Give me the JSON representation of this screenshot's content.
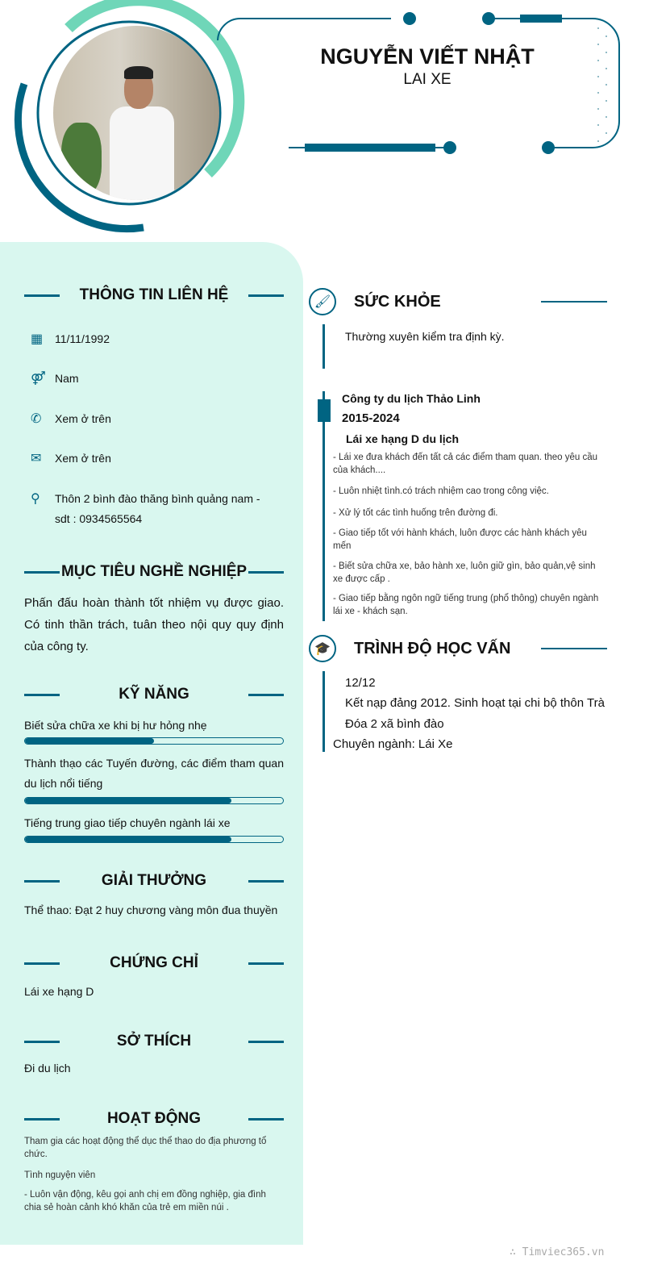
{
  "header": {
    "name": "NGUYỄN VIẾT NHẬT",
    "title": "LAI XE"
  },
  "contact": {
    "heading": "THÔNG TIN LIÊN HỆ",
    "birthday": "11/11/1992",
    "gender": "Nam",
    "phone": "Xem ở trên",
    "email": "Xem ở trên",
    "address": "Thôn 2 bình đào thăng bình quảng nam - sdt : 0934565564"
  },
  "objective": {
    "heading": "MỤC TIÊU NGHỀ NGHIỆP",
    "text": "Phấn đấu hoàn thành tốt nhiệm vụ được giao. Có tinh thần trách, tuân theo nội quy quy định của công ty."
  },
  "skills": {
    "heading": "KỸ NĂNG",
    "items": [
      {
        "label": "Biết sửa chữa xe khi bị hư hỏng nhẹ",
        "level": 50
      },
      {
        "label": "Thành thạo các Tuyến đường, các điểm tham quan du lịch nổi tiếng",
        "level": 80
      },
      {
        "label": "Tiếng trung giao tiếp chuyên ngành lái xe",
        "level": 80
      }
    ]
  },
  "awards": {
    "heading": "GIẢI THƯỞNG",
    "text": "Thể thao: Đạt 2 huy chương vàng môn đua thuyền"
  },
  "certificates": {
    "heading": "CHỨNG CHỈ",
    "text": "Lái xe hạng D"
  },
  "hobbies": {
    "heading": "SỞ THÍCH",
    "text": "Đi du lịch"
  },
  "activities": {
    "heading": "HOẠT ĐỘNG",
    "items": [
      "Tham gia các hoạt động thể dục thể thao do địa phương tổ chức.",
      "Tình nguyện viên",
      "- Luôn vận động, kêu gọi anh chị em đồng nghiệp, gia đình chia sẻ hoàn cảnh khó khăn của trẻ em miền núi ."
    ]
  },
  "health": {
    "heading": "SỨC KHỎE",
    "text": "Thường xuyên kiểm tra định kỳ."
  },
  "experience": {
    "company": "Công ty du lịch Thảo Linh",
    "period": "2015-2024",
    "position": "Lái xe hạng D du lịch",
    "items": [
      "- Lái xe đưa khách đến tất cả các điểm tham quan. theo yêu cầu của khách....",
      "- Luôn nhiệt tình.có trách nhiệm cao trong công việc.",
      "- Xử lý tốt các tình huống trên đường đi.",
      "- Giao tiếp tốt với hành khách, luôn được các hành khách yêu mến",
      "- Biết sửa chữa xe, bảo hành xe, luôn giữ gìn, bảo quản,vệ sinh xe được cấp .",
      "- Giao tiếp bằng ngôn ngữ tiếng trung (phổ thông) chuyên ngành lái xe - khách sạn."
    ]
  },
  "education": {
    "heading": "TRÌNH ĐỘ HỌC VẤN",
    "grade": "12/12",
    "note": "Kết nạp đảng 2012. Sinh hoạt tại chi bộ thôn Trà Đóa 2 xã bình đào",
    "major": "Chuyên ngành: Lái Xe"
  },
  "watermark": "∴ Timviec365.vn",
  "colors": {
    "primary": "#006482",
    "mint": "#d9f7ef",
    "accent": "#6fd6b8"
  }
}
